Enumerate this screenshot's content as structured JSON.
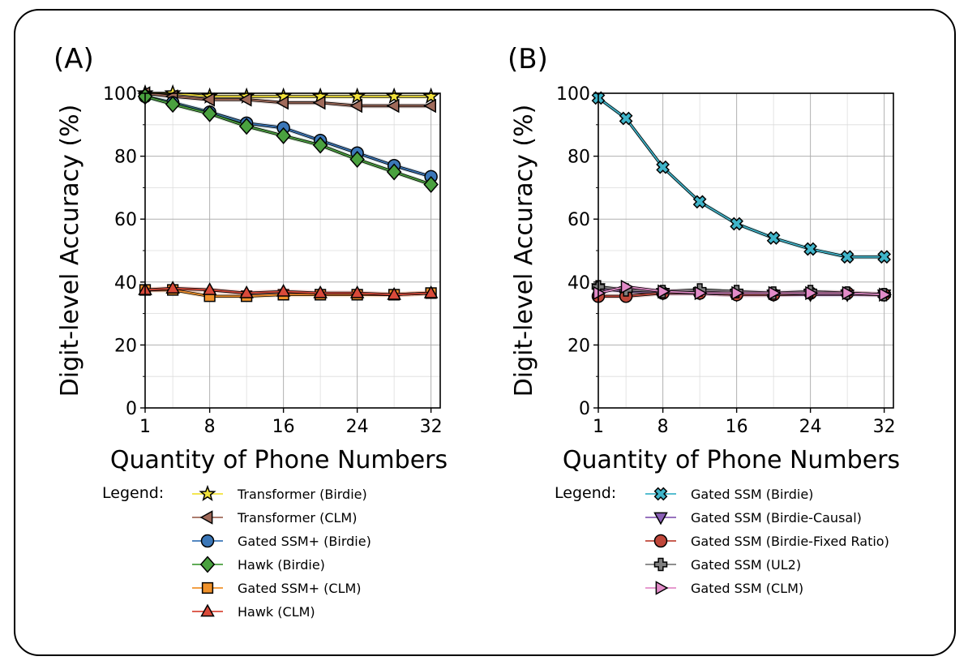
{
  "chart_data": [
    {
      "panel_label": "(A)",
      "type": "line",
      "xlabel": "Quantity of Phone Numbers",
      "ylabel": "Digit-level Accuracy (%)",
      "xlim": [
        1,
        33
      ],
      "ylim": [
        0,
        100
      ],
      "xticks": [
        1,
        8,
        16,
        24,
        32
      ],
      "yticks": [
        0,
        20,
        40,
        60,
        80,
        100
      ],
      "grid": true,
      "legend_title": "Legend:",
      "legend_position": "below",
      "x": [
        1,
        4,
        8,
        12,
        16,
        20,
        24,
        28,
        32
      ],
      "series": [
        {
          "name": "Transformer (Birdie)",
          "marker": "star",
          "color": "#f2e23a",
          "values": [
            100,
            100,
            99,
            99,
            99,
            99,
            99,
            99,
            99
          ]
        },
        {
          "name": "Transformer (CLM)",
          "marker": "triangle-left",
          "color": "#a06a5a",
          "values": [
            100,
            99,
            98,
            98,
            97,
            97,
            96,
            96,
            96
          ]
        },
        {
          "name": "Gated SSM+ (Birdie)",
          "marker": "circle",
          "color": "#3b77b8",
          "values": [
            99,
            97,
            94,
            90.5,
            89,
            85,
            81,
            77,
            73.5
          ]
        },
        {
          "name": "Hawk (Birdie)",
          "marker": "diamond",
          "color": "#4aa13f",
          "values": [
            99,
            96.5,
            93.5,
            89.5,
            86.5,
            83.5,
            79,
            75,
            71
          ]
        },
        {
          "name": "Gated SSM+ (CLM)",
          "marker": "square",
          "color": "#f0922b",
          "values": [
            37.5,
            37.5,
            35.5,
            35.5,
            36,
            36,
            36,
            36,
            36.5
          ]
        },
        {
          "name": "Hawk (CLM)",
          "marker": "triangle-up",
          "color": "#d94a3a",
          "values": [
            37.5,
            38,
            37.5,
            36.5,
            37,
            36.5,
            36.5,
            36,
            36.5
          ]
        }
      ]
    },
    {
      "panel_label": "(B)",
      "type": "line",
      "xlabel": "Quantity of Phone Numbers",
      "ylabel": "Digit-level Accuracy (%)",
      "xlim": [
        1,
        33
      ],
      "ylim": [
        0,
        100
      ],
      "xticks": [
        1,
        8,
        16,
        24,
        32
      ],
      "yticks": [
        0,
        20,
        40,
        60,
        80,
        100
      ],
      "grid": true,
      "legend_title": "Legend:",
      "legend_position": "below",
      "x": [
        1,
        4,
        8,
        12,
        16,
        20,
        24,
        28,
        32
      ],
      "series": [
        {
          "name": "Gated SSM (Birdie)",
          "marker": "x-filled",
          "color": "#3fb4c9",
          "values": [
            98.5,
            92,
            76.5,
            65.5,
            58.5,
            54,
            50.5,
            48,
            48
          ]
        },
        {
          "name": "Gated SSM (Birdie-Causal)",
          "marker": "triangle-down",
          "color": "#8a5fb5",
          "values": [
            38,
            37,
            36.5,
            36.5,
            36,
            36,
            36,
            36,
            36
          ]
        },
        {
          "name": "Gated SSM (Birdie-Fixed Ratio)",
          "marker": "circle",
          "color": "#c0473a",
          "values": [
            35.5,
            35.5,
            36.5,
            36.5,
            36,
            36,
            36.5,
            36.5,
            36
          ]
        },
        {
          "name": "Gated SSM (UL2)",
          "marker": "plus-filled",
          "color": "#7f7f7f",
          "values": [
            38.5,
            37.5,
            37,
            37.5,
            37,
            36.5,
            37,
            36.5,
            36
          ]
        },
        {
          "name": "Gated SSM (CLM)",
          "marker": "triangle-right",
          "color": "#e28bc8",
          "values": [
            36.5,
            38.5,
            37,
            36.5,
            36.5,
            36.5,
            36.5,
            36.5,
            36
          ]
        }
      ]
    }
  ]
}
